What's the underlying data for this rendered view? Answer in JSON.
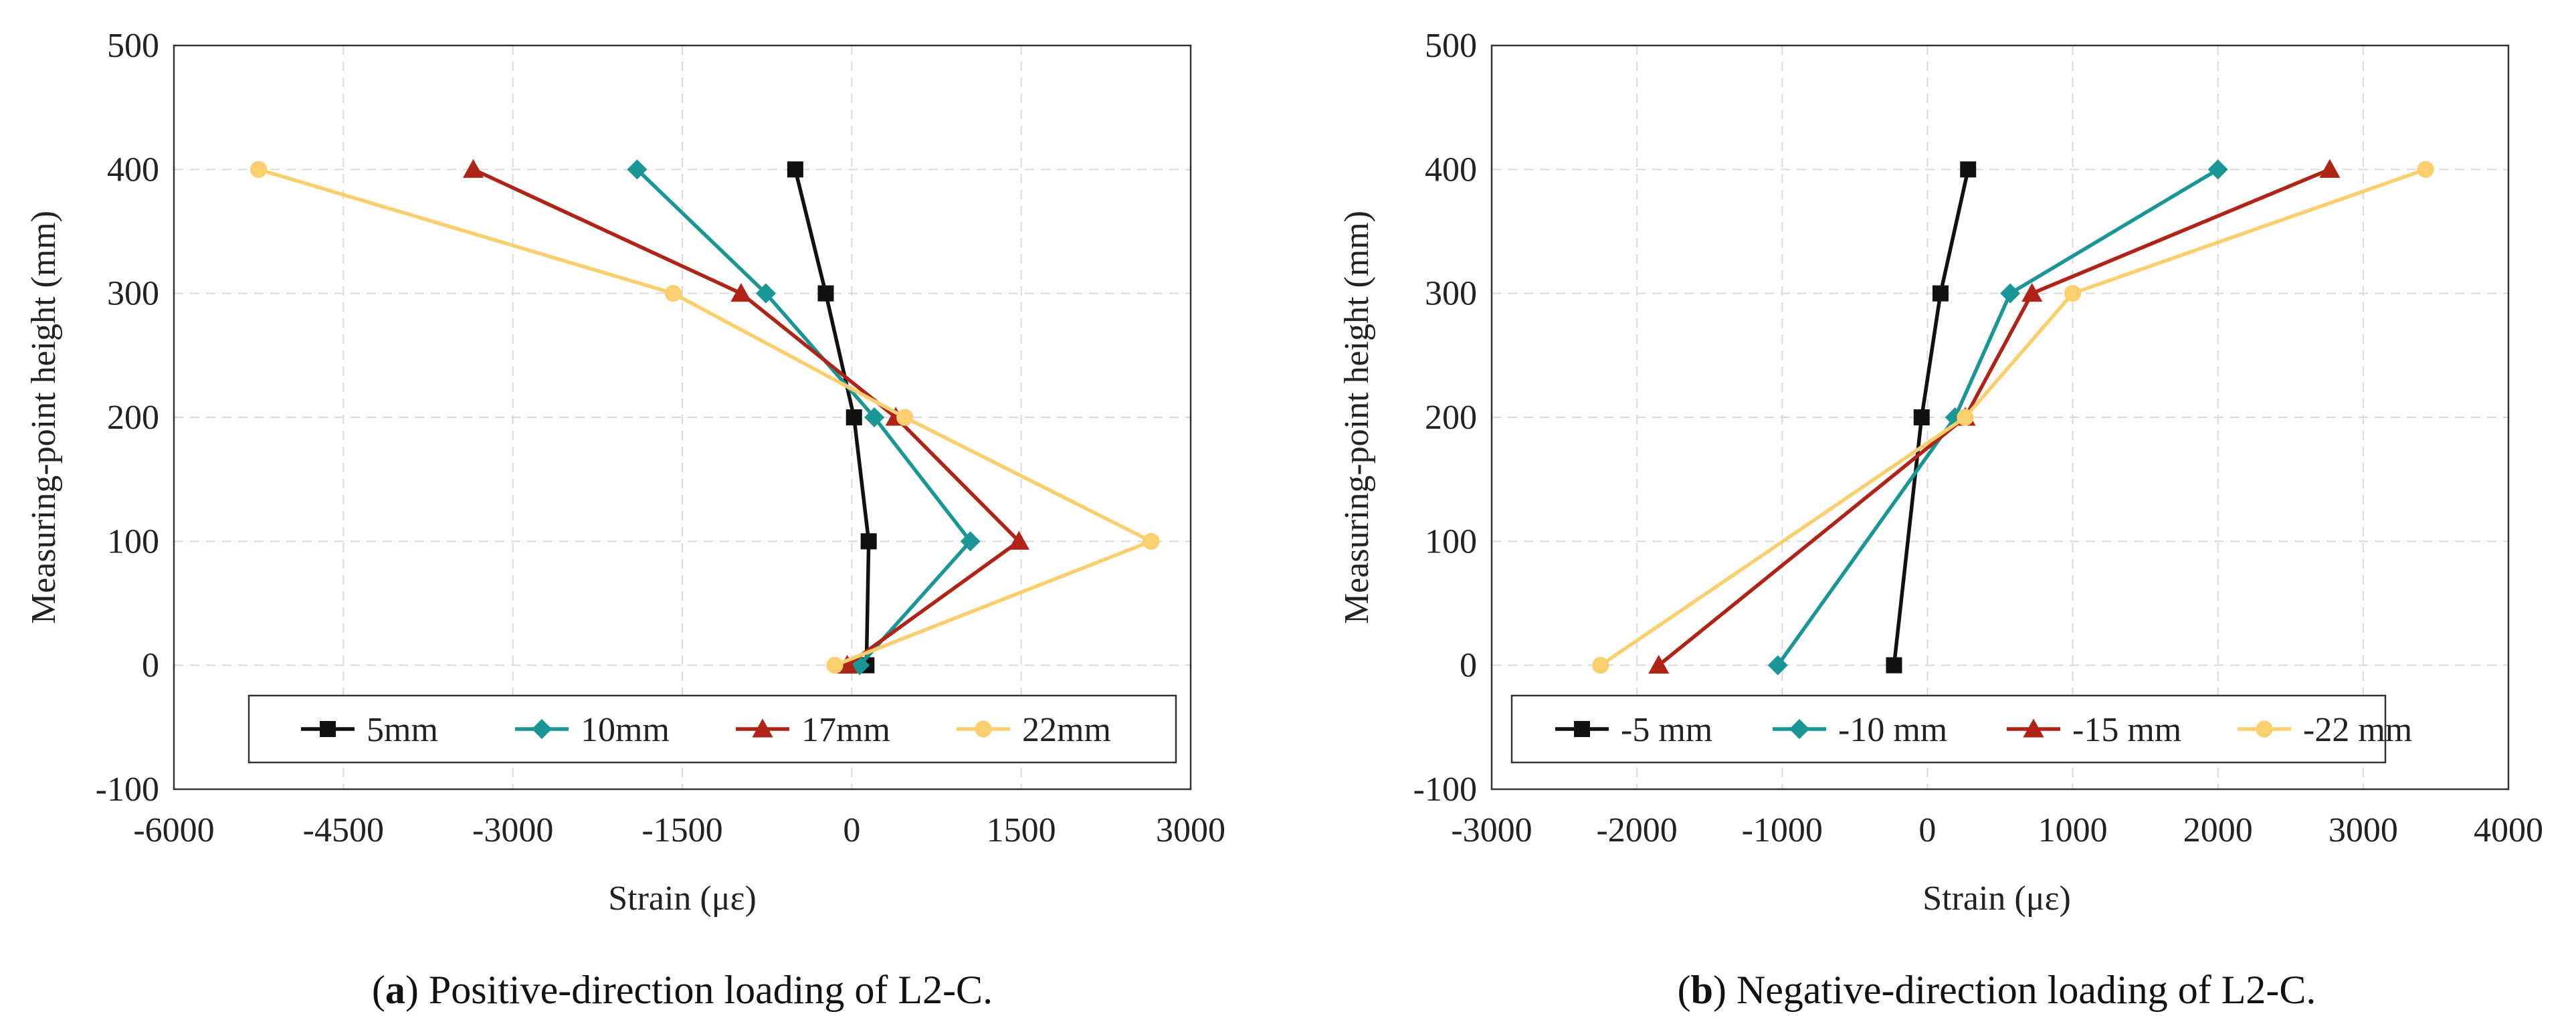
{
  "chart_data": [
    {
      "type": "line",
      "title": "",
      "caption_label": "a",
      "caption_text": ") Positive-direction loading of L2-C.",
      "xlabel": "Strain (με)",
      "ylabel": "Measuring-point height (mm)",
      "xlim": [
        -6000,
        3000
      ],
      "ylim": [
        -100,
        500
      ],
      "xticks": [
        -6000,
        -4500,
        -3000,
        -1500,
        0,
        1500,
        3000
      ],
      "yticks": [
        -100,
        0,
        100,
        200,
        300,
        400,
        500
      ],
      "grid": true,
      "legend_position": "bottom",
      "series": [
        {
          "name": "5mm",
          "color": "#111111",
          "marker": "square",
          "x": [
            130,
            150,
            20,
            -230,
            -500
          ],
          "y": [
            0,
            100,
            200,
            300,
            400
          ]
        },
        {
          "name": "10mm",
          "color": "#1a9696",
          "marker": "diamond",
          "x": [
            70,
            1050,
            200,
            -760,
            -1900
          ],
          "y": [
            0,
            100,
            200,
            300,
            400
          ]
        },
        {
          "name": "17mm",
          "color": "#b02418",
          "marker": "triangle",
          "x": [
            -40,
            1480,
            390,
            -980,
            -3350
          ],
          "y": [
            0,
            100,
            200,
            300,
            400
          ]
        },
        {
          "name": "22mm",
          "color": "#fbce6e",
          "marker": "circle",
          "x": [
            -150,
            2650,
            470,
            -1580,
            -5250
          ],
          "y": [
            0,
            100,
            200,
            300,
            400
          ]
        }
      ]
    },
    {
      "type": "line",
      "title": "",
      "caption_label": "b",
      "caption_text": ") Negative-direction loading of L2-C.",
      "xlabel": "Strain (με)",
      "ylabel": "Measuring-point height (mm)",
      "xlim": [
        -3000,
        4000
      ],
      "ylim": [
        -100,
        500
      ],
      "xticks": [
        -3000,
        -2000,
        -1000,
        0,
        1000,
        2000,
        3000,
        4000
      ],
      "yticks": [
        -100,
        0,
        100,
        200,
        300,
        400,
        500
      ],
      "grid": true,
      "legend_position": "bottom",
      "series": [
        {
          "name": "-5 mm",
          "color": "#111111",
          "marker": "square",
          "x": [
            -230,
            -40,
            90,
            280
          ],
          "y": [
            0,
            200,
            300,
            400
          ]
        },
        {
          "name": "-10 mm",
          "color": "#1a9696",
          "marker": "diamond",
          "x": [
            -1030,
            190,
            570,
            2000
          ],
          "y": [
            0,
            200,
            300,
            400
          ]
        },
        {
          "name": "-15 mm",
          "color": "#b02418",
          "marker": "triangle",
          "x": [
            -1850,
            260,
            720,
            2770
          ],
          "y": [
            0,
            200,
            300,
            400
          ]
        },
        {
          "name": "-22 mm",
          "color": "#fbce6e",
          "marker": "circle",
          "x": [
            -2250,
            260,
            1000,
            3430
          ],
          "y": [
            0,
            200,
            300,
            400
          ]
        }
      ]
    }
  ]
}
